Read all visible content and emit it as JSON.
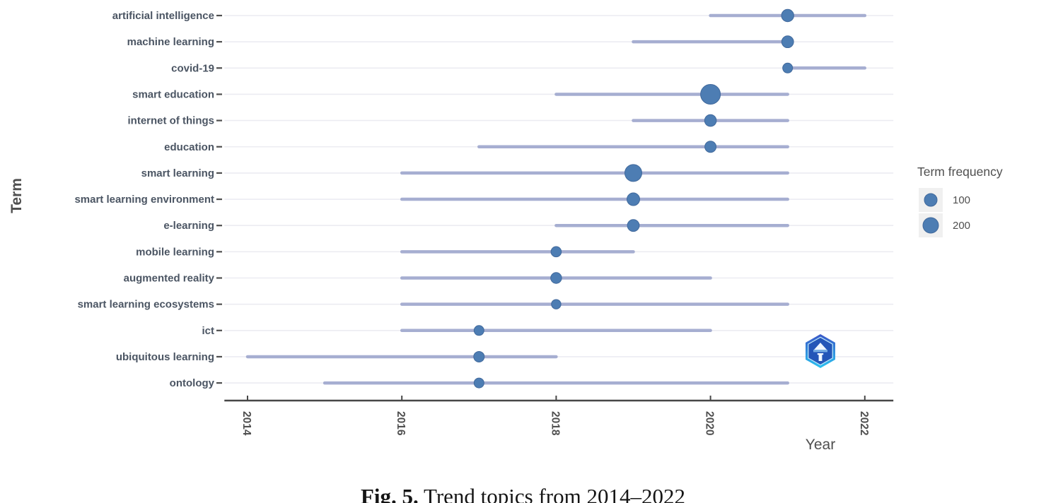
{
  "caption": {
    "label": "Fig. 5.",
    "text": " Trend topics from 2014–2022"
  },
  "watermark": {
    "name": "hexagon-badge-logo",
    "color_top": "#3a57c8",
    "color_bottom": "#2bc2f0",
    "inner_color": "#2456b8"
  },
  "chart_data": {
    "type": "scatter",
    "variant": "trend-topics-range-bubble",
    "title": "",
    "xlabel": "Year",
    "ylabel": "Term",
    "xlim": [
      2013.7,
      2022.37
    ],
    "xticks": [
      2014,
      2016,
      2018,
      2020,
      2022
    ],
    "grid": "horizontal-only",
    "legend": {
      "title": "Term frequency",
      "position": "right",
      "entries": [
        {
          "label": "100",
          "r": 9
        },
        {
          "label": "200",
          "r": 11
        }
      ]
    },
    "series": [
      {
        "term": "artificial intelligence",
        "year_start": 2020,
        "year_peak": 2021,
        "year_end": 2022,
        "freq": 100,
        "r": 8.7
      },
      {
        "term": "machine learning",
        "year_start": 2019,
        "year_peak": 2021,
        "year_end": 2021,
        "freq": 90,
        "r": 8.4
      },
      {
        "term": "covid-19",
        "year_start": 2021,
        "year_peak": 2021,
        "year_end": 2022,
        "freq": 45,
        "r": 7.0
      },
      {
        "term": "smart education",
        "year_start": 2018,
        "year_peak": 2020,
        "year_end": 2021,
        "freq": 360,
        "r": 14.0
      },
      {
        "term": "internet of things",
        "year_start": 2019,
        "year_peak": 2020,
        "year_end": 2021,
        "freq": 85,
        "r": 8.3
      },
      {
        "term": "education",
        "year_start": 2017,
        "year_peak": 2020,
        "year_end": 2021,
        "freq": 80,
        "r": 8.0
      },
      {
        "term": "smart learning",
        "year_start": 2016,
        "year_peak": 2019,
        "year_end": 2021,
        "freq": 265,
        "r": 12.0
      },
      {
        "term": "smart learning environment",
        "year_start": 2016,
        "year_peak": 2019,
        "year_end": 2021,
        "freq": 115,
        "r": 9.0
      },
      {
        "term": "e-learning",
        "year_start": 2018,
        "year_peak": 2019,
        "year_end": 2021,
        "freq": 90,
        "r": 8.4
      },
      {
        "term": "mobile learning",
        "year_start": 2016,
        "year_peak": 2018,
        "year_end": 2019,
        "freq": 55,
        "r": 7.3
      },
      {
        "term": "augmented reality",
        "year_start": 2016,
        "year_peak": 2018,
        "year_end": 2020,
        "freq": 60,
        "r": 7.7
      },
      {
        "term": "smart learning ecosystems",
        "year_start": 2016,
        "year_peak": 2018,
        "year_end": 2021,
        "freq": 40,
        "r": 6.7
      },
      {
        "term": "ict",
        "year_start": 2016,
        "year_peak": 2017,
        "year_end": 2020,
        "freq": 45,
        "r": 7.0
      },
      {
        "term": "ubiquitous learning",
        "year_start": 2014,
        "year_peak": 2017,
        "year_end": 2018,
        "freq": 55,
        "r": 7.5
      },
      {
        "term": "ontology",
        "year_start": 2015,
        "year_peak": 2017,
        "year_end": 2021,
        "freq": 50,
        "r": 7.0
      }
    ],
    "colors": {
      "dot": "#4d7db3",
      "dot_edge": "#41699c",
      "range_line": "#a6aed1",
      "grid_line": "#ececf2",
      "axis": "#474747",
      "tick_text": "#4f4f4f",
      "term_label": "#4b5563",
      "legend_key_bg": "#f0f0f0"
    }
  }
}
